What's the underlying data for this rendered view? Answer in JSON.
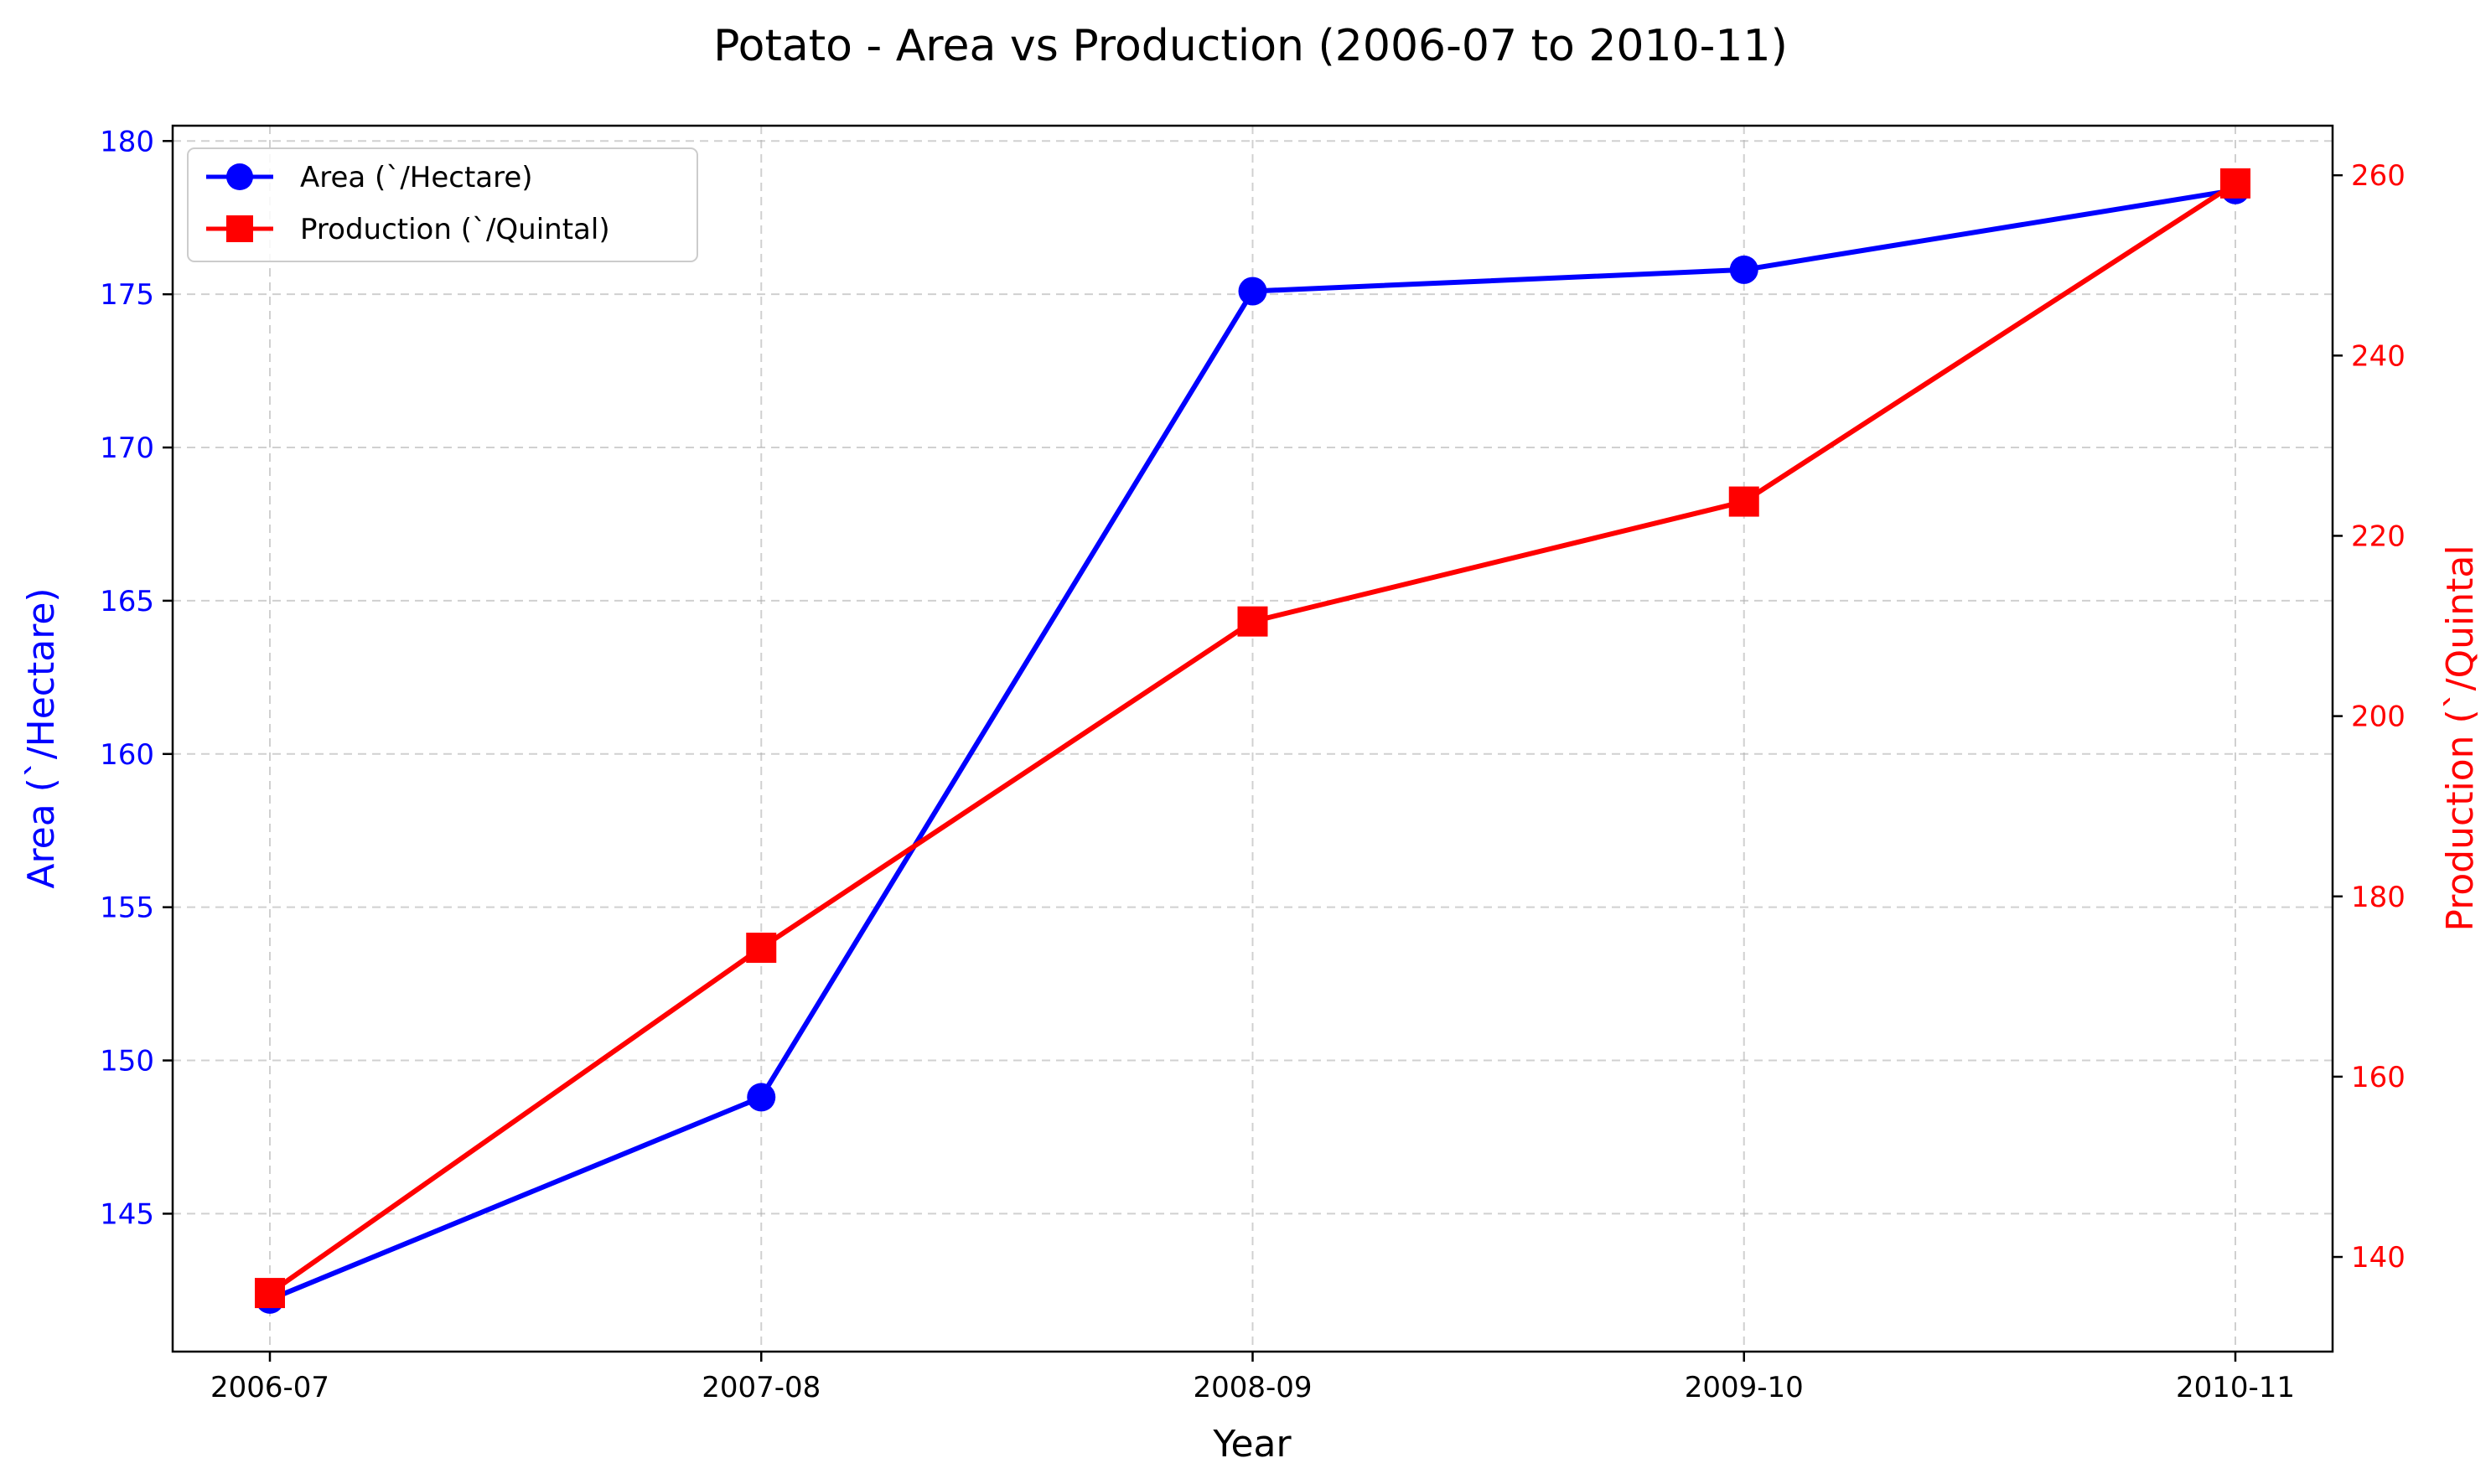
{
  "chart_data": {
    "type": "line",
    "title": "Potato - Area vs Production (2006-07 to 2010-11)",
    "xlabel": "Year",
    "ylabel_left": "Area (`/Hectare)",
    "ylabel_right": "Production (`/Quintal",
    "categories": [
      "2006-07",
      "2007-08",
      "2008-09",
      "2009-10",
      "2010-11"
    ],
    "series": [
      {
        "name": "Area (`/Hectare)",
        "axis": "left",
        "color": "#0000ff",
        "marker": "circle",
        "values": [
          142.2,
          148.8,
          175.1,
          175.8,
          178.4
        ]
      },
      {
        "name": "Production (`/Quintal)",
        "axis": "right",
        "color": "#ff0000",
        "marker": "square",
        "values": [
          136.0,
          174.3,
          210.5,
          223.8,
          259.1
        ]
      }
    ],
    "ylim_left": [
      140.5,
      180.5
    ],
    "ylim_right": [
      129.5,
      265.5
    ],
    "yticks_left": [
      145,
      150,
      155,
      160,
      165,
      170,
      175,
      180
    ],
    "yticks_right": [
      140,
      160,
      180,
      200,
      220,
      240,
      260
    ],
    "grid": true,
    "grid_style": "dashed",
    "legend_position": "upper-left",
    "left_axis_color": "#0000ff",
    "right_axis_color": "#ff0000"
  }
}
